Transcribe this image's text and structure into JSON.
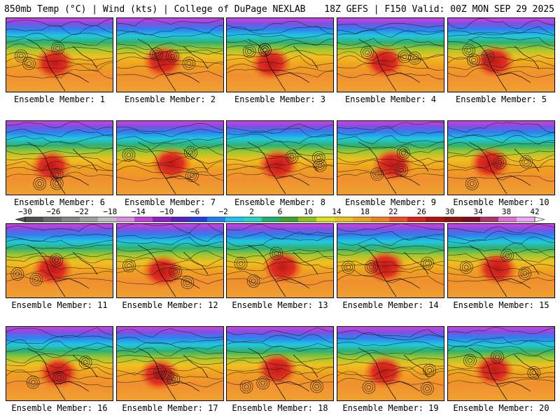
{
  "header": {
    "left": "850mb Temp (°C) | Wind (kts) | College of DuPage NEXLAB",
    "right": "18Z GEFS | F150 Valid: 00Z MON SEP 29 2025"
  },
  "members": [
    "Ensemble Member: 1",
    "Ensemble Member: 2",
    "Ensemble Member: 3",
    "Ensemble Member: 4",
    "Ensemble Member: 5",
    "Ensemble Member: 6",
    "Ensemble Member: 7",
    "Ensemble Member: 8",
    "Ensemble Member: 9",
    "Ensemble Member: 10",
    "Ensemble Member: 11",
    "Ensemble Member: 12",
    "Ensemble Member: 13",
    "Ensemble Member: 14",
    "Ensemble Member: 15",
    "Ensemble Member: 16",
    "Ensemble Member: 17",
    "Ensemble Member: 18",
    "Ensemble Member: 19",
    "Ensemble Member: 20"
  ],
  "colorbar": {
    "labels": [
      "-30",
      "-26",
      "-22",
      "-18",
      "-14",
      "-10",
      "-6",
      "-2",
      "2",
      "6",
      "10",
      "14",
      "18",
      "22",
      "26",
      "30",
      "34",
      "38",
      "42"
    ],
    "colors": [
      "#505050",
      "#6a6a6a",
      "#858585",
      "#9f9f9f",
      "#c0c0c0",
      "#d890e0",
      "#c040d8",
      "#9020c8",
      "#5a20c0",
      "#2040d8",
      "#2080f0",
      "#20c0f0",
      "#20d8c0",
      "#20b070",
      "#40a030",
      "#90c020",
      "#e0e020",
      "#f0c020",
      "#f0a020",
      "#f08020",
      "#e85020",
      "#d82020",
      "#b01010",
      "#901010",
      "#800820",
      "#b03070",
      "#e070d0",
      "#f0a8f0"
    ]
  }
}
